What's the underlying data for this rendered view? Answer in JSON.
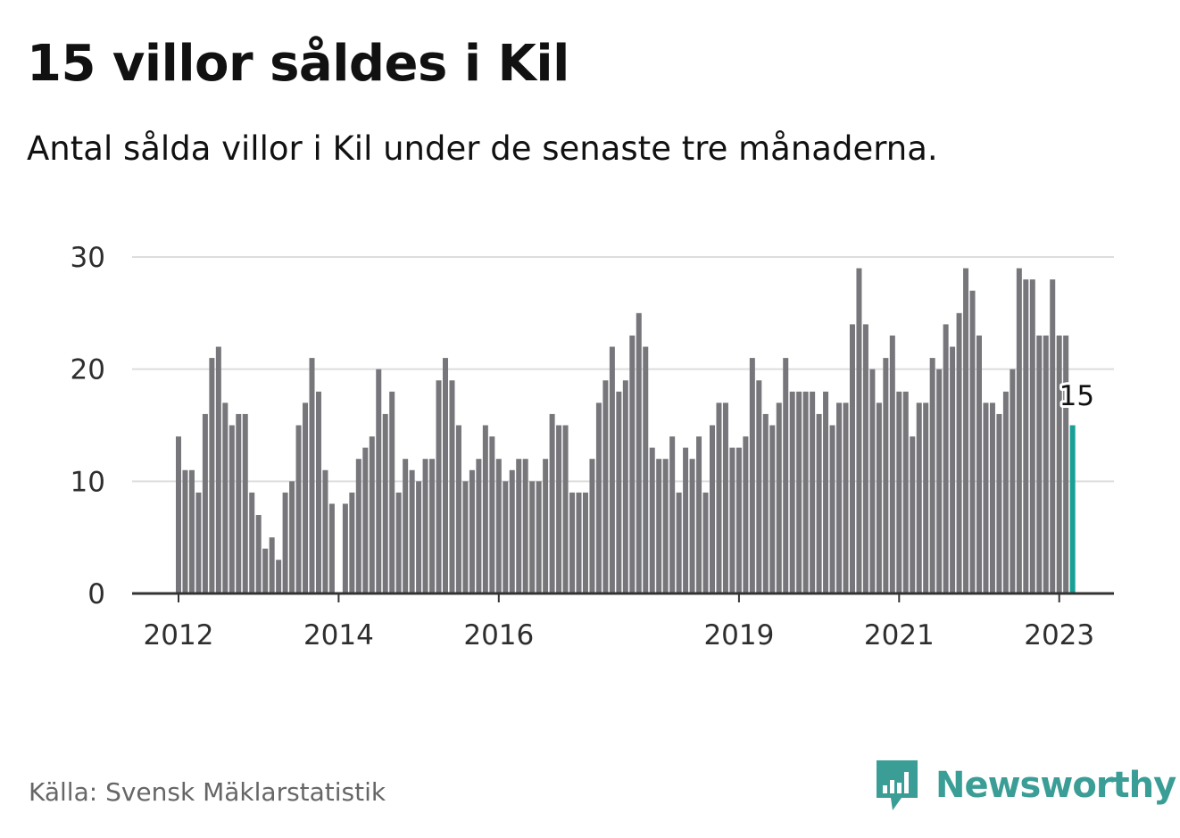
{
  "title": "15 villor såldes i Kil",
  "subtitle": "Antal sålda villor i Kil under de senaste tre månaderna.",
  "source": "Källa: Svensk Mäklarstatistik",
  "brand": {
    "name": "Newsworthy",
    "icon": "newsworthy-logo-icon",
    "color": "#3a9e96"
  },
  "colors": {
    "bar": "#77767b",
    "highlight": "#1a9f96",
    "grid": "#dddddd",
    "axis": "#333333"
  },
  "chart_data": {
    "type": "bar",
    "title": "15 villor såldes i Kil",
    "subtitle": "Antal sålda villor i Kil under de senaste tre månaderna.",
    "xlabel": "",
    "ylabel": "",
    "ylim": [
      0,
      30
    ],
    "yticks": [
      0,
      10,
      20,
      30
    ],
    "grid": true,
    "x_start": "2012-01",
    "xticks": [
      "2012",
      "2014",
      "2016",
      "2019",
      "2021",
      "2023"
    ],
    "values": [
      14,
      11,
      11,
      9,
      16,
      21,
      22,
      17,
      15,
      16,
      16,
      9,
      7,
      4,
      5,
      3,
      9,
      10,
      15,
      17,
      21,
      18,
      11,
      8,
      null,
      8,
      9,
      12,
      13,
      14,
      20,
      16,
      18,
      9,
      12,
      11,
      10,
      12,
      12,
      19,
      21,
      19,
      15,
      10,
      11,
      12,
      15,
      14,
      12,
      10,
      11,
      12,
      12,
      10,
      10,
      12,
      16,
      15,
      15,
      9,
      9,
      9,
      12,
      17,
      19,
      22,
      18,
      19,
      23,
      25,
      22,
      13,
      12,
      12,
      14,
      9,
      13,
      12,
      14,
      9,
      15,
      17,
      17,
      13,
      13,
      14,
      21,
      19,
      16,
      15,
      17,
      21,
      18,
      18,
      18,
      18,
      16,
      18,
      15,
      17,
      17,
      24,
      29,
      24,
      20,
      17,
      21,
      23,
      18,
      18,
      14,
      17,
      17,
      21,
      20,
      24,
      22,
      25,
      29,
      27,
      23,
      17,
      17,
      16,
      18,
      20,
      29,
      28,
      28,
      23,
      23,
      28,
      23,
      23,
      15
    ],
    "highlight_last": true,
    "annotation": "15"
  }
}
